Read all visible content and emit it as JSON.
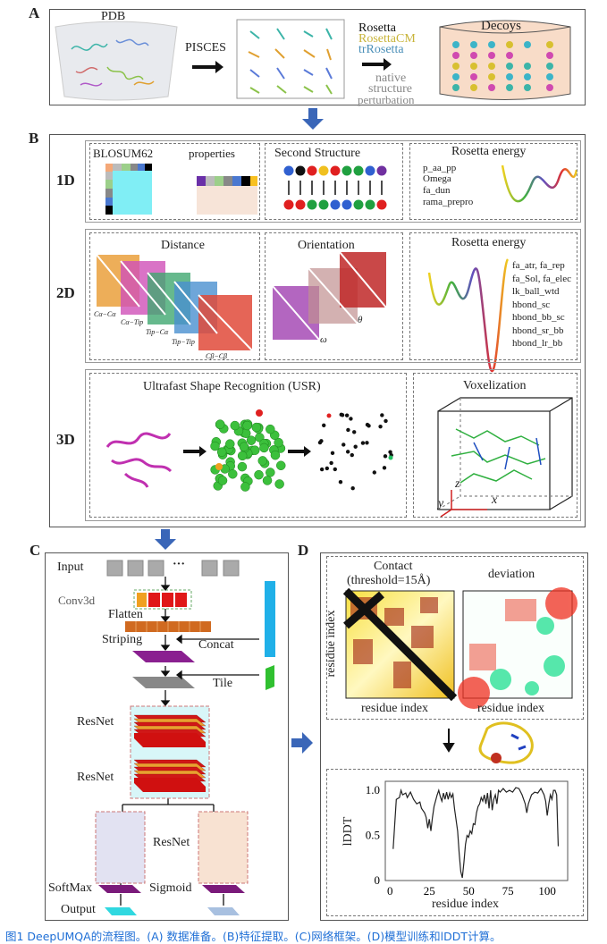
{
  "panels": {
    "a": "A",
    "b": "B",
    "c": "C",
    "d": "D"
  },
  "panel_a": {
    "pdb": "PDB",
    "pisces": "PISCES",
    "tools": [
      "Rosetta",
      "RosettaCM",
      "trRosetta"
    ],
    "perturb": [
      "native",
      "structure",
      "perturbation"
    ],
    "decoys": "Decoys",
    "tool_colors": [
      "#111111",
      "#c8b43a",
      "#4a8fb8"
    ]
  },
  "panel_b": {
    "rows": [
      "1D",
      "2D",
      "3D"
    ],
    "d1": {
      "blosum": "BLOSUM62",
      "properties": "properties",
      "second_structure": "Second Structure",
      "rosetta": "Rosetta energy",
      "terms": [
        "p_aa_pp",
        "Omega",
        "fa_dun",
        "rama_prepro"
      ]
    },
    "d2": {
      "distance": "Distance",
      "orientation": "Orientation",
      "rosetta": "Rosetta energy",
      "dist_labels": [
        "Cα−Cα",
        "Cα−Tip",
        "Tip−Cα",
        "Tip−Tip",
        "Cβ−Cβ"
      ],
      "orient_labels": [
        "ω",
        "θ"
      ],
      "terms": [
        "fa_atr, fa_rep",
        "fa_Sol, fa_elec",
        "lk_ball_wtd",
        "hbond_sc",
        "hbond_bb_sc",
        "hbond_sr_bb",
        "hbond_lr_bb"
      ]
    },
    "d3": {
      "usr": "Ultrafast Shape Recognition (USR)",
      "voxel": "Voxelization",
      "axes": [
        "z",
        "y",
        "x"
      ]
    }
  },
  "panel_c": {
    "input": "Input",
    "ellipsis": "···",
    "conv3d": "Conv3d",
    "flatten": "Flatten",
    "striping": "Striping",
    "concat": "Concat",
    "tile": "Tile",
    "resnet": "ResNet",
    "softmax": "SoftMax",
    "sigmoid": "Sigmoid",
    "output": "Output"
  },
  "panel_d": {
    "contact": "Contact",
    "threshold": "(threshold=15Å)",
    "deviation": "deviation",
    "residue_index": "residue index"
  },
  "chart_data": {
    "type": "line",
    "title": "",
    "xlabel": "residue index",
    "ylabel": "lDDT",
    "xlim": [
      -3,
      113
    ],
    "ylim": [
      0,
      1.1
    ],
    "xticks": [
      0,
      25,
      50,
      75,
      100
    ],
    "yticks": [
      0,
      0.5,
      1.0
    ],
    "ytick_labels": [
      "0",
      "0.5",
      "1.0"
    ],
    "grid": false,
    "series": [
      {
        "name": "lDDT",
        "x": [
          2,
          4,
          6,
          7,
          8,
          10,
          11,
          13,
          15,
          17,
          19,
          20,
          22,
          23,
          24,
          25,
          26,
          27,
          28,
          30,
          31,
          32,
          33,
          34,
          35,
          36,
          37,
          38,
          39,
          40,
          41,
          43,
          44,
          45,
          46,
          47,
          48,
          49,
          50,
          51,
          52,
          53,
          54,
          55,
          56,
          57,
          58,
          59,
          60,
          61,
          62,
          63,
          64,
          65,
          66,
          67,
          68,
          69,
          70,
          72,
          74,
          76,
          78,
          80,
          82,
          84,
          86,
          87,
          88,
          90,
          92,
          94,
          96,
          98,
          99,
          100,
          101,
          102,
          103,
          104,
          105,
          106,
          107
        ],
        "y": [
          0.35,
          0.9,
          0.92,
          1.0,
          0.95,
          0.97,
          0.92,
          0.98,
          0.9,
          0.85,
          0.87,
          0.8,
          0.75,
          0.7,
          0.58,
          0.68,
          0.55,
          0.7,
          0.82,
          0.95,
          1.0,
          0.93,
          0.88,
          0.97,
          0.9,
          0.98,
          0.9,
          0.97,
          0.92,
          0.96,
          0.8,
          0.55,
          0.3,
          0.1,
          0.03,
          0.2,
          0.4,
          0.5,
          0.48,
          0.55,
          0.52,
          0.63,
          0.62,
          0.75,
          0.82,
          0.85,
          0.92,
          0.88,
          0.95,
          0.85,
          0.97,
          0.8,
          1.0,
          0.78,
          0.9,
          0.95,
          0.85,
          1.0,
          0.98,
          1.02,
          0.98,
          1.0,
          0.98,
          1.03,
          1.02,
          0.95,
          0.85,
          0.75,
          0.85,
          0.95,
          0.98,
          0.97,
          1.02,
          0.95,
          0.88,
          0.72,
          0.85,
          0.95,
          0.9,
          1.0,
          1.0,
          0.95,
          0.38
        ]
      }
    ]
  },
  "caption": "图1 DeepUMQA的流程图。(A) 数据准备。(B)特征提取。(C)网络框架。(D)模型训练和lDDT计算。",
  "colors": {
    "arrow_blue": "#3a66b8",
    "caption_blue": "#1f6fd6"
  }
}
